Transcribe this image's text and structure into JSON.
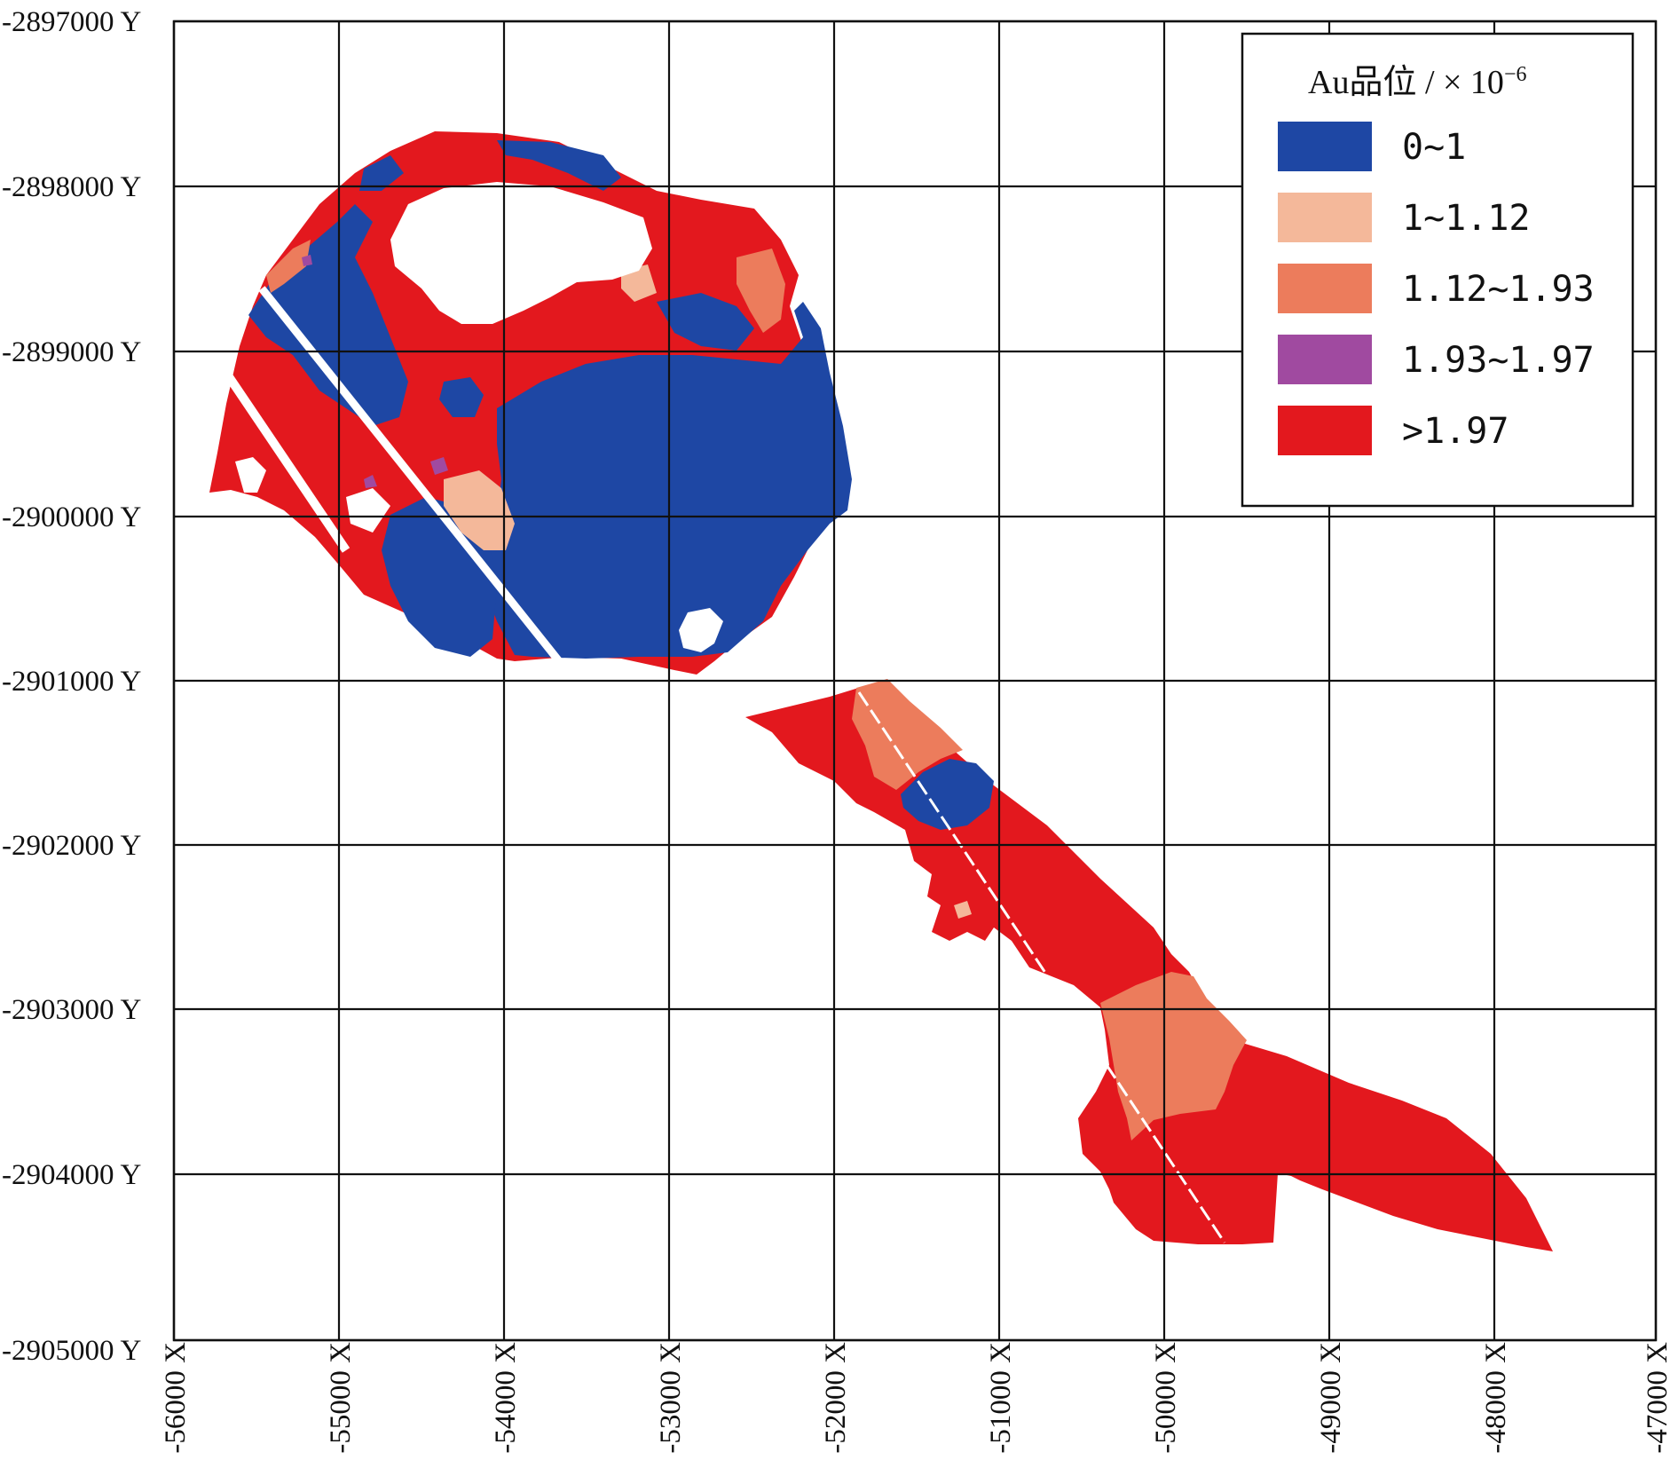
{
  "map": {
    "legend": {
      "title": "Au品位 / × 10",
      "title_exponent": "−6",
      "items": [
        {
          "label": "0~1",
          "color": "#1e47a4"
        },
        {
          "label": "1~1.12",
          "color": "#f4b89a"
        },
        {
          "label": "1.12~1.93",
          "color": "#ec7c5c"
        },
        {
          "label": "1.93~1.97",
          "color": "#a04aa0"
        },
        {
          "label": ">1.97",
          "color": "#e3181e"
        }
      ]
    },
    "y_ticks": [
      "-2897000 Y",
      "-2898000 Y",
      "-2899000 Y",
      "-2900000 Y",
      "-2901000 Y",
      "-2902000 Y",
      "-2903000 Y",
      "-2904000 Y",
      "-2905000 Y"
    ],
    "x_ticks": [
      "-56000 X",
      "-55000 X",
      "-54000 X",
      "-53000 X",
      "-52000 X",
      "-51000 X",
      "-50000 X",
      "-49000 X",
      "-48000 X",
      "-47000 X"
    ],
    "colors": {
      "blue": "#1e47a4",
      "light_salmon": "#f4b89a",
      "salmon": "#ec7c5c",
      "purple": "#a04aa0",
      "red": "#e3181e",
      "grid": "#111111"
    }
  }
}
